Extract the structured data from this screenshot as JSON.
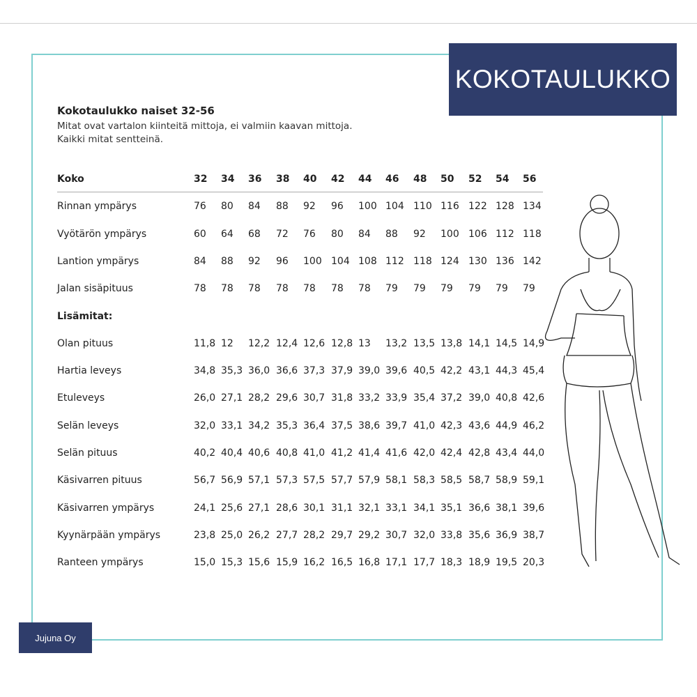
{
  "title_badge": "KOKOTAULUKKO",
  "brand": "Jujuna Oy",
  "heading": "Kokotaulukko naiset 32-56",
  "subtitle_lines": [
    "Mitat ovat vartalon kiinteitä mittoja, ei valmiin kaavan mittoja.",
    "Kaikki mitat sentteinä."
  ],
  "table": {
    "header_label": "Koko",
    "sizes": [
      "32",
      "34",
      "36",
      "38",
      "40",
      "42",
      "44",
      "46",
      "48",
      "50",
      "52",
      "54",
      "56"
    ],
    "rows": [
      {
        "label": "Rinnan ympärys",
        "values": [
          "76",
          "80",
          "84",
          "88",
          "92",
          "96",
          "100",
          "104",
          "110",
          "116",
          "122",
          "128",
          "134"
        ]
      },
      {
        "label": "Vyötärön ympärys",
        "values": [
          "60",
          "64",
          "68",
          "72",
          "76",
          "80",
          "84",
          "88",
          "92",
          "100",
          "106",
          "112",
          "118"
        ]
      },
      {
        "label": "Lantion ympärys",
        "values": [
          "84",
          "88",
          "92",
          "96",
          "100",
          "104",
          "108",
          "112",
          "118",
          "124",
          "130",
          "136",
          "142"
        ]
      },
      {
        "label": "Jalan sisäpituus",
        "values": [
          "78",
          "78",
          "78",
          "78",
          "78",
          "78",
          "78",
          "79",
          "79",
          "79",
          "79",
          "79",
          "79"
        ]
      }
    ],
    "extra_section_label": "Lisämitat:",
    "extra_rows": [
      {
        "label": "Olan pituus",
        "values": [
          "11,8",
          "12",
          "12,2",
          "12,4",
          "12,6",
          "12,8",
          "13",
          "13,2",
          "13,5",
          "13,8",
          "14,1",
          "14,5",
          "14,9"
        ]
      },
      {
        "label": "Hartia leveys",
        "values": [
          "34,8",
          "35,3",
          "36,0",
          "36,6",
          "37,3",
          "37,9",
          "39,0",
          "39,6",
          "40,5",
          "42,2",
          "43,1",
          "44,3",
          "45,4"
        ]
      },
      {
        "label": "Etuleveys",
        "values": [
          "26,0",
          "27,1",
          "28,2",
          "29,6",
          "30,7",
          "31,8",
          "33,2",
          "33,9",
          "35,4",
          "37,2",
          "39,0",
          "40,8",
          "42,6"
        ]
      },
      {
        "label": "Selän leveys",
        "values": [
          "32,0",
          "33,1",
          "34,2",
          "35,3",
          "36,4",
          "37,5",
          "38,6",
          "39,7",
          "41,0",
          "42,3",
          "43,6",
          "44,9",
          "46,2"
        ]
      },
      {
        "label": "Selän pituus",
        "values": [
          "40,2",
          "40,4",
          "40,6",
          "40,8",
          "41,0",
          "41,2",
          "41,4",
          "41,6",
          "42,0",
          "42,4",
          "42,8",
          "43,4",
          "44,0"
        ]
      },
      {
        "label": "Käsivarren pituus",
        "values": [
          "56,7",
          "56,9",
          "57,1",
          "57,3",
          "57,5",
          "57,7",
          "57,9",
          "58,1",
          "58,3",
          "58,5",
          "58,7",
          "58,9",
          "59,1"
        ]
      },
      {
        "label": "Käsivarren ympärys",
        "values": [
          "24,1",
          "25,6",
          "27,1",
          "28,6",
          "30,1",
          "31,1",
          "32,1",
          "33,1",
          "34,1",
          "35,1",
          "36,6",
          "38,1",
          "39,6"
        ]
      },
      {
        "label": "Kyynärpään ympärys",
        "values": [
          "23,8",
          "25,0",
          "26,2",
          "27,7",
          "28,2",
          "29,7",
          "29,2",
          "30,7",
          "32,0",
          "33,8",
          "35,6",
          "36,9",
          "38,7"
        ]
      },
      {
        "label": "Ranteen ympärys",
        "values": [
          "15,0",
          "15,3",
          "15,6",
          "15,9",
          "16,2",
          "16,5",
          "16,8",
          "17,1",
          "17,7",
          "18,3",
          "18,9",
          "19,5",
          "20,3"
        ]
      }
    ]
  },
  "colors": {
    "navy": "#2f3d6b",
    "frame": "#7fcfcf"
  },
  "illustration": "woman-line-drawing"
}
